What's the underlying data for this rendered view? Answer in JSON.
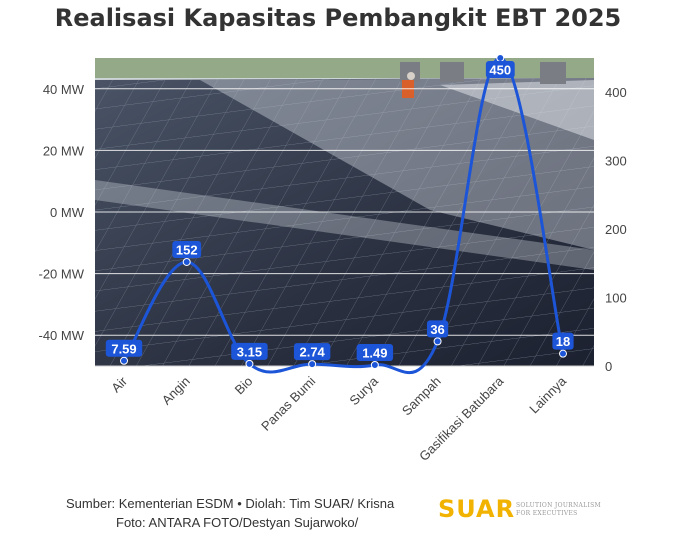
{
  "title": "Realisasi Kapasitas Pembangkit EBT 2025",
  "source_line": "Sumber: Kementerian ESDM • Diolah: Tim SUAR/ Krisna",
  "photo_line": "Foto: ANTARA FOTO/Destyan Sujarwoko/",
  "logo": {
    "text": "SUAR",
    "tagline": "SOLUTION JOURNALISM FOR EXECUTIVES"
  },
  "chart_data": {
    "type": "line",
    "title": "Realisasi Kapasitas Pembangkit EBT 2025",
    "categories": [
      "Air",
      "Angin",
      "Bio",
      "Panas Bumi",
      "Surya",
      "Sampah",
      "Gasifikasi Batubara",
      "Lainnya"
    ],
    "series": [
      {
        "values": [
          7.59,
          152,
          3.15,
          2.74,
          1.49,
          36,
          450,
          18
        ],
        "labels": [
          "7.59",
          "152",
          "3.15",
          "2.74",
          "1.49",
          "36",
          "450",
          "18"
        ]
      }
    ],
    "y_left": {
      "ticks": [
        -40,
        -20,
        0,
        20,
        40
      ],
      "tick_labels": [
        "-40 MW",
        "-20 MW",
        "0 MW",
        "20 MW",
        "40 MW"
      ],
      "range": [
        -50,
        50
      ]
    },
    "y_right": {
      "ticks": [
        0,
        100,
        200,
        300,
        400
      ],
      "tick_labels": [
        "0",
        "100",
        "200",
        "300",
        "400"
      ],
      "range": [
        0,
        450
      ]
    },
    "grid": true,
    "background": "photo of solar panels",
    "colors": {
      "line": "#1c55d8",
      "label_bg": "#1c55d8",
      "label_text": "#ffffff"
    }
  }
}
